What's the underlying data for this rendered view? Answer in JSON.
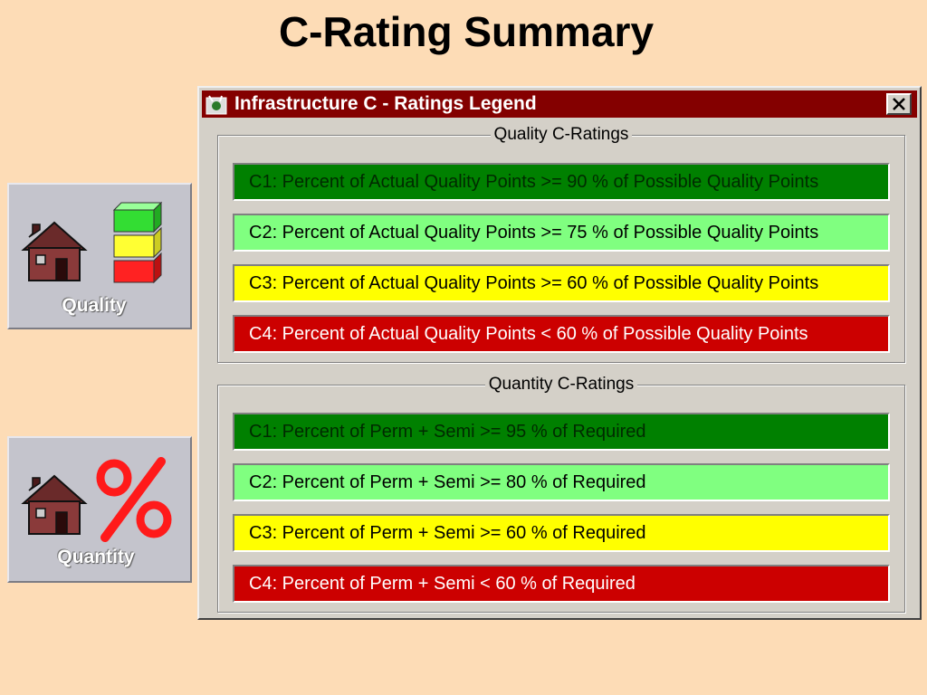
{
  "slide": {
    "title": "C-Rating Summary"
  },
  "tiles": {
    "quality": {
      "label": "Quality",
      "icon": "house-with-rating-blocks-icon"
    },
    "quantity": {
      "label": "Quantity",
      "icon": "house-with-percent-icon"
    }
  },
  "window": {
    "title": "Infrastructure C - Ratings Legend",
    "titlebar_color": "#840000"
  },
  "quality_group": {
    "legend": "Quality C-Ratings",
    "rows": [
      {
        "text": "C1:  Percent of Actual Quality Points >=   90 % of Possible Quality Points",
        "color": "#008000",
        "text_color": "#002a00"
      },
      {
        "text": "C2:  Percent of Actual Quality Points >=  75 % of Possible Quality Points",
        "color": "#80ff80",
        "text_color": "#000000"
      },
      {
        "text": "C3:  Percent of Actual Quality Points >=  60 % of Possible Quality Points",
        "color": "#ffff00",
        "text_color": "#000000"
      },
      {
        "text": "C4:  Percent of Actual Quality Points <  60 % of Possible Quality Points",
        "color": "#cc0000",
        "text_color": "#ffffff"
      }
    ]
  },
  "quantity_group": {
    "legend": "Quantity C-Ratings",
    "rows": [
      {
        "text": "C1:  Percent of Perm + Semi >=  95 % of Required",
        "color": "#008000",
        "text_color": "#002a00"
      },
      {
        "text": "C2:  Percent of Perm + Semi >=  80 % of Required",
        "color": "#80ff80",
        "text_color": "#000000"
      },
      {
        "text": "C3:  Percent of Perm + Semi >=  60 % of Required",
        "color": "#ffff00",
        "text_color": "#000000"
      },
      {
        "text": "C4:  Percent of Perm + Semi <  60 % of Required",
        "color": "#cc0000",
        "text_color": "#ffffff"
      }
    ]
  }
}
